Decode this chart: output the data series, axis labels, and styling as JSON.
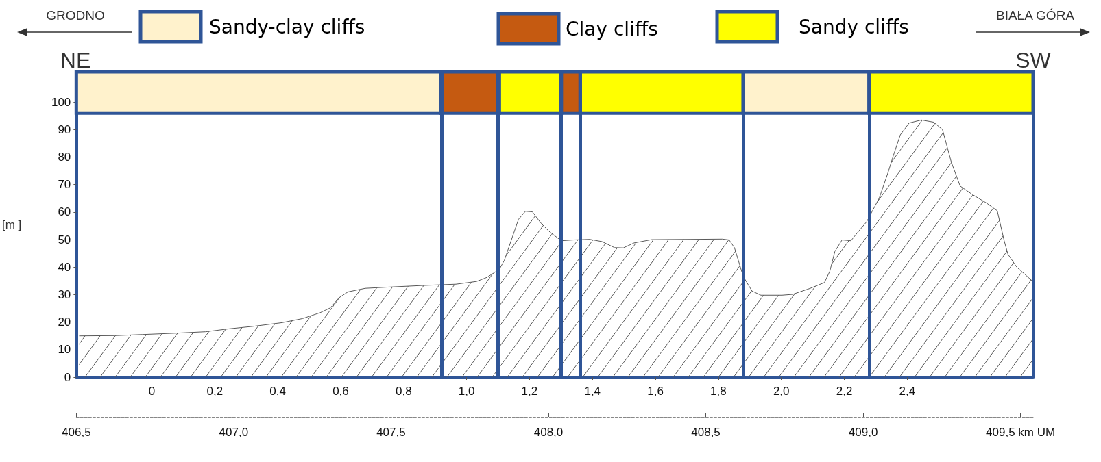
{
  "chart_data": {
    "type": "area",
    "ylabel": "[m ]",
    "x2label": null,
    "annotations": [
      "GRODNO",
      "BIAŁA GÓRA",
      "NE",
      "SW"
    ],
    "legend": "top",
    "marker": "none",
    "x": [
      -0.231,
      -0.118,
      -0.03,
      0.08,
      0.17,
      0.247,
      0.324,
      0.413,
      0.479,
      0.534,
      0.567,
      0.595,
      0.623,
      0.678,
      0.744,
      0.855,
      0.966,
      1.032,
      1.065,
      1.104,
      1.12,
      1.148,
      1.165,
      1.187,
      1.209,
      1.237,
      1.262,
      1.301,
      1.341,
      1.391,
      1.43,
      1.47,
      1.498,
      1.532,
      1.588,
      1.711,
      1.812,
      1.834,
      1.851,
      1.879,
      1.907,
      1.935,
      2.002,
      2.036,
      2.092,
      2.137,
      2.154,
      2.17,
      2.193,
      2.221,
      2.243,
      2.271,
      2.311,
      2.339,
      2.356,
      2.378,
      2.406,
      2.445,
      2.484,
      2.512,
      2.54,
      2.568,
      2.607,
      2.652,
      2.686,
      2.708,
      2.72,
      2.748,
      2.8
    ],
    "series": [
      {
        "color": "#595959",
        "values": [
          15,
          15.1,
          15.5,
          16,
          16.5,
          17.6,
          18.5,
          19.8,
          21.3,
          23.4,
          25.2,
          28.9,
          31,
          32.3,
          32.7,
          33.3,
          33.8,
          34.8,
          36.3,
          39.2,
          42.5,
          51.8,
          57.4,
          60.3,
          60.1,
          55.9,
          53,
          49.6,
          49.9,
          50.1,
          49.3,
          47.1,
          47,
          48.8,
          50,
          50.1,
          50.2,
          49.9,
          47.1,
          36.6,
          31.3,
          29.8,
          29.8,
          30.1,
          32.3,
          34.4,
          38.5,
          45.7,
          49.9,
          49.6,
          52.7,
          56.5,
          65.1,
          74.4,
          80.6,
          88.1,
          92.4,
          93.5,
          92.7,
          90,
          78.2,
          69.5,
          66.4,
          63.3,
          60.5,
          49.6,
          44.7,
          40,
          34.7
        ]
      }
    ],
    "bands": [
      {
        "axis": "x",
        "from": -0.24,
        "to": 0.918,
        "color": "#fff2cc",
        "label": "Sandy-clay cliffs"
      },
      {
        "axis": "x",
        "from": 0.918,
        "to": 1.104,
        "color": "#c55a11",
        "label": "Clay cliffs"
      },
      {
        "axis": "x",
        "from": 1.104,
        "to": 1.301,
        "color": "#ffff00",
        "label": "Sandy cliffs"
      },
      {
        "axis": "x",
        "from": 1.301,
        "to": 1.361,
        "color": "#c55a11"
      },
      {
        "axis": "x",
        "from": 1.361,
        "to": 1.879,
        "color": "#ffff00"
      },
      {
        "axis": "x",
        "from": 1.879,
        "to": 2.279,
        "color": "#fff2cc"
      },
      {
        "axis": "x",
        "from": 2.279,
        "to": 2.8,
        "color": "#ffff00"
      }
    ],
    "ref_lines": [
      {
        "axis": "x",
        "value": 0.918,
        "color": "#2f5597"
      },
      {
        "axis": "x",
        "value": 1.104,
        "color": "#2f5597"
      },
      {
        "axis": "x",
        "value": 1.301,
        "color": "#2f5597"
      },
      {
        "axis": "x",
        "value": 1.361,
        "color": "#2f5597"
      },
      {
        "axis": "x",
        "value": 1.879,
        "color": "#2f5597"
      },
      {
        "axis": "x",
        "value": 2.279,
        "color": "#2f5597"
      },
      {
        "axis": "x",
        "value": 2.8,
        "color": "#2f5597"
      }
    ],
    "xlim": [
      -0.24,
      2.8
    ],
    "xticks": [
      0,
      {
        "value": 0.2,
        "label": "0,2"
      },
      {
        "value": 0.4,
        "label": "0,4"
      },
      {
        "value": 0.6,
        "label": "0,6"
      },
      {
        "value": 0.8,
        "label": "0,8"
      },
      {
        "value": 1.0,
        "label": "1,0"
      },
      {
        "value": 1.2,
        "label": "1,2"
      },
      {
        "value": 1.4,
        "label": "1,4"
      },
      {
        "value": 1.6,
        "label": "1,6"
      },
      {
        "value": 1.8,
        "label": "1,8"
      },
      {
        "value": 2.0,
        "label": "2,0"
      },
      {
        "value": 2.2,
        "label": "2,2"
      },
      {
        "value": 2.4,
        "label": "2,4"
      }
    ],
    "x2lim": [
      406.5,
      409.54
    ],
    "x2ticks": [
      {
        "value": 406.5,
        "label": "406,5"
      },
      {
        "value": 407.0,
        "label": "407,0"
      },
      {
        "value": 407.5,
        "label": "407,5"
      },
      {
        "value": 408.0,
        "label": "408,0"
      },
      {
        "value": 408.5,
        "label": "408,5"
      },
      {
        "value": 409.0,
        "label": "409,0"
      },
      {
        "value": 409.5,
        "label": "409,5 km UM"
      }
    ],
    "ylim": [
      0,
      111
    ],
    "yticks": [
      0,
      10,
      20,
      30,
      40,
      50,
      60,
      70,
      80,
      90,
      100
    ],
    "grid": false
  }
}
